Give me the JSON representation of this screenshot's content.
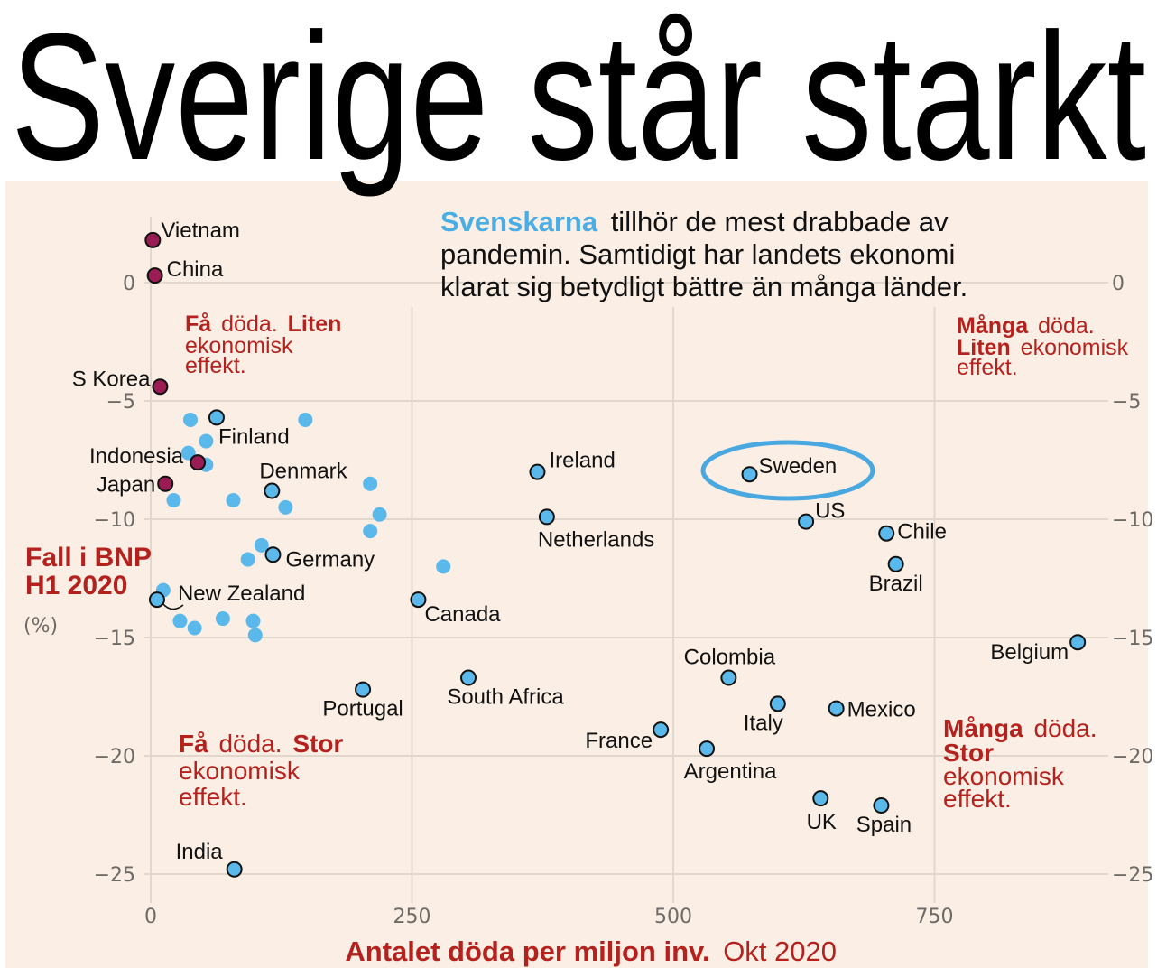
{
  "title": "Sverige står starkt",
  "subtitle": {
    "highlight": "Svenskarna",
    "line1_rest": "tillhör de mest drabbade av",
    "line2": "pandemin. Samtidigt har landets ekonomi",
    "line3": "klarat sig betydligt  bättre än många länder."
  },
  "quadrants": {
    "top_left": {
      "bold1": "Få",
      "normal1": "döda.",
      "bold2": "Liten",
      "line2": "ekonomisk",
      "line3": "effekt."
    },
    "top_right": {
      "bold1": "Många",
      "normal1": "döda.",
      "bold2": "Liten",
      "normal2": "ekonomisk",
      "line3": "effekt."
    },
    "bottom_left": {
      "bold1": "Få",
      "normal1": "döda.",
      "bold2": "Stor",
      "line2": "ekonomisk",
      "line3": "effekt."
    },
    "bottom_right": {
      "bold1": "Många",
      "normal1": "döda.",
      "bold2": "Stor",
      "line3": "ekonomisk",
      "line4": "effekt."
    }
  },
  "colors": {
    "background": "#fbefe5",
    "blue": "#5bb8ea",
    "maroon": "#9b1c54",
    "red": "#b5221e",
    "grid": "#e2d7cc",
    "highlight_ring": "#4aa8e0"
  },
  "chart_data": {
    "type": "scatter",
    "title": "Sverige står starkt",
    "ylabel_line1": "Fall i BNP",
    "ylabel_line2": "H1 2020",
    "ylabel_unit": "(%)",
    "xlabel_bold": "Antalet döda per miljon inv.",
    "xlabel_normal": "Okt 2020",
    "xlim": [
      0,
      950
    ],
    "ylim": [
      -27,
      3
    ],
    "xticks": [
      0,
      250,
      500,
      750
    ],
    "xtick_labels": [
      "0",
      "250",
      "500",
      "750"
    ],
    "yticks": [
      0,
      -5,
      -10,
      -15,
      -20,
      -25
    ],
    "ytick_labels": [
      "0",
      "−5",
      "−10",
      "−15",
      "−20",
      "−25"
    ],
    "grid": true,
    "highlight": "Sweden",
    "labeled_points": [
      {
        "name": "Vietnam",
        "x": 2,
        "y": 1.8,
        "group": "asia"
      },
      {
        "name": "China",
        "x": 4,
        "y": 0.3,
        "group": "asia"
      },
      {
        "name": "S Korea",
        "x": 9,
        "y": -4.4,
        "group": "asia"
      },
      {
        "name": "Finland",
        "x": 63,
        "y": -5.7,
        "group": "other"
      },
      {
        "name": "Indonesia",
        "x": 45,
        "y": -7.6,
        "group": "asia"
      },
      {
        "name": "Japan",
        "x": 14,
        "y": -8.5,
        "group": "asia"
      },
      {
        "name": "Denmark",
        "x": 116,
        "y": -8.8,
        "group": "other"
      },
      {
        "name": "Germany",
        "x": 117,
        "y": -11.5,
        "group": "other"
      },
      {
        "name": "New Zealand",
        "x": 6,
        "y": -13.4,
        "group": "other"
      },
      {
        "name": "Canada",
        "x": 256,
        "y": -13.4,
        "group": "other"
      },
      {
        "name": "Ireland",
        "x": 370,
        "y": -8.0,
        "group": "other"
      },
      {
        "name": "Netherlands",
        "x": 379,
        "y": -9.9,
        "group": "other"
      },
      {
        "name": "Portugal",
        "x": 203,
        "y": -17.2,
        "group": "other"
      },
      {
        "name": "South Africa",
        "x": 304,
        "y": -16.7,
        "group": "other"
      },
      {
        "name": "France",
        "x": 488,
        "y": -18.9,
        "group": "other"
      },
      {
        "name": "Argentina",
        "x": 532,
        "y": -19.7,
        "group": "other"
      },
      {
        "name": "Colombia",
        "x": 553,
        "y": -16.7,
        "group": "other"
      },
      {
        "name": "Italy",
        "x": 600,
        "y": -17.8,
        "group": "other"
      },
      {
        "name": "Mexico",
        "x": 656,
        "y": -18.0,
        "group": "other"
      },
      {
        "name": "UK",
        "x": 641,
        "y": -21.8,
        "group": "other"
      },
      {
        "name": "Spain",
        "x": 699,
        "y": -22.1,
        "group": "other"
      },
      {
        "name": "Sweden",
        "x": 573,
        "y": -8.1,
        "group": "other"
      },
      {
        "name": "US",
        "x": 627,
        "y": -10.1,
        "group": "other"
      },
      {
        "name": "Chile",
        "x": 704,
        "y": -10.6,
        "group": "other"
      },
      {
        "name": "Brazil",
        "x": 713,
        "y": -11.9,
        "group": "other"
      },
      {
        "name": "Belgium",
        "x": 887,
        "y": -15.2,
        "group": "other"
      },
      {
        "name": "India",
        "x": 80,
        "y": -24.8,
        "group": "other"
      }
    ],
    "unlabeled_points": [
      {
        "x": 38,
        "y": -5.8
      },
      {
        "x": 148,
        "y": -5.8
      },
      {
        "x": 53,
        "y": -6.7
      },
      {
        "x": 36,
        "y": -7.2
      },
      {
        "x": 53,
        "y": -7.7
      },
      {
        "x": 210,
        "y": -8.5
      },
      {
        "x": 22,
        "y": -9.2
      },
      {
        "x": 79,
        "y": -9.2
      },
      {
        "x": 129,
        "y": -9.5
      },
      {
        "x": 219,
        "y": -9.8
      },
      {
        "x": 210,
        "y": -10.5
      },
      {
        "x": 106,
        "y": -11.1
      },
      {
        "x": 93,
        "y": -11.7
      },
      {
        "x": 280,
        "y": -12.0
      },
      {
        "x": 12,
        "y": -13.0
      },
      {
        "x": 28,
        "y": -14.3
      },
      {
        "x": 42,
        "y": -14.6
      },
      {
        "x": 69,
        "y": -14.2
      },
      {
        "x": 98,
        "y": -14.3
      },
      {
        "x": 100,
        "y": -14.9
      }
    ]
  }
}
